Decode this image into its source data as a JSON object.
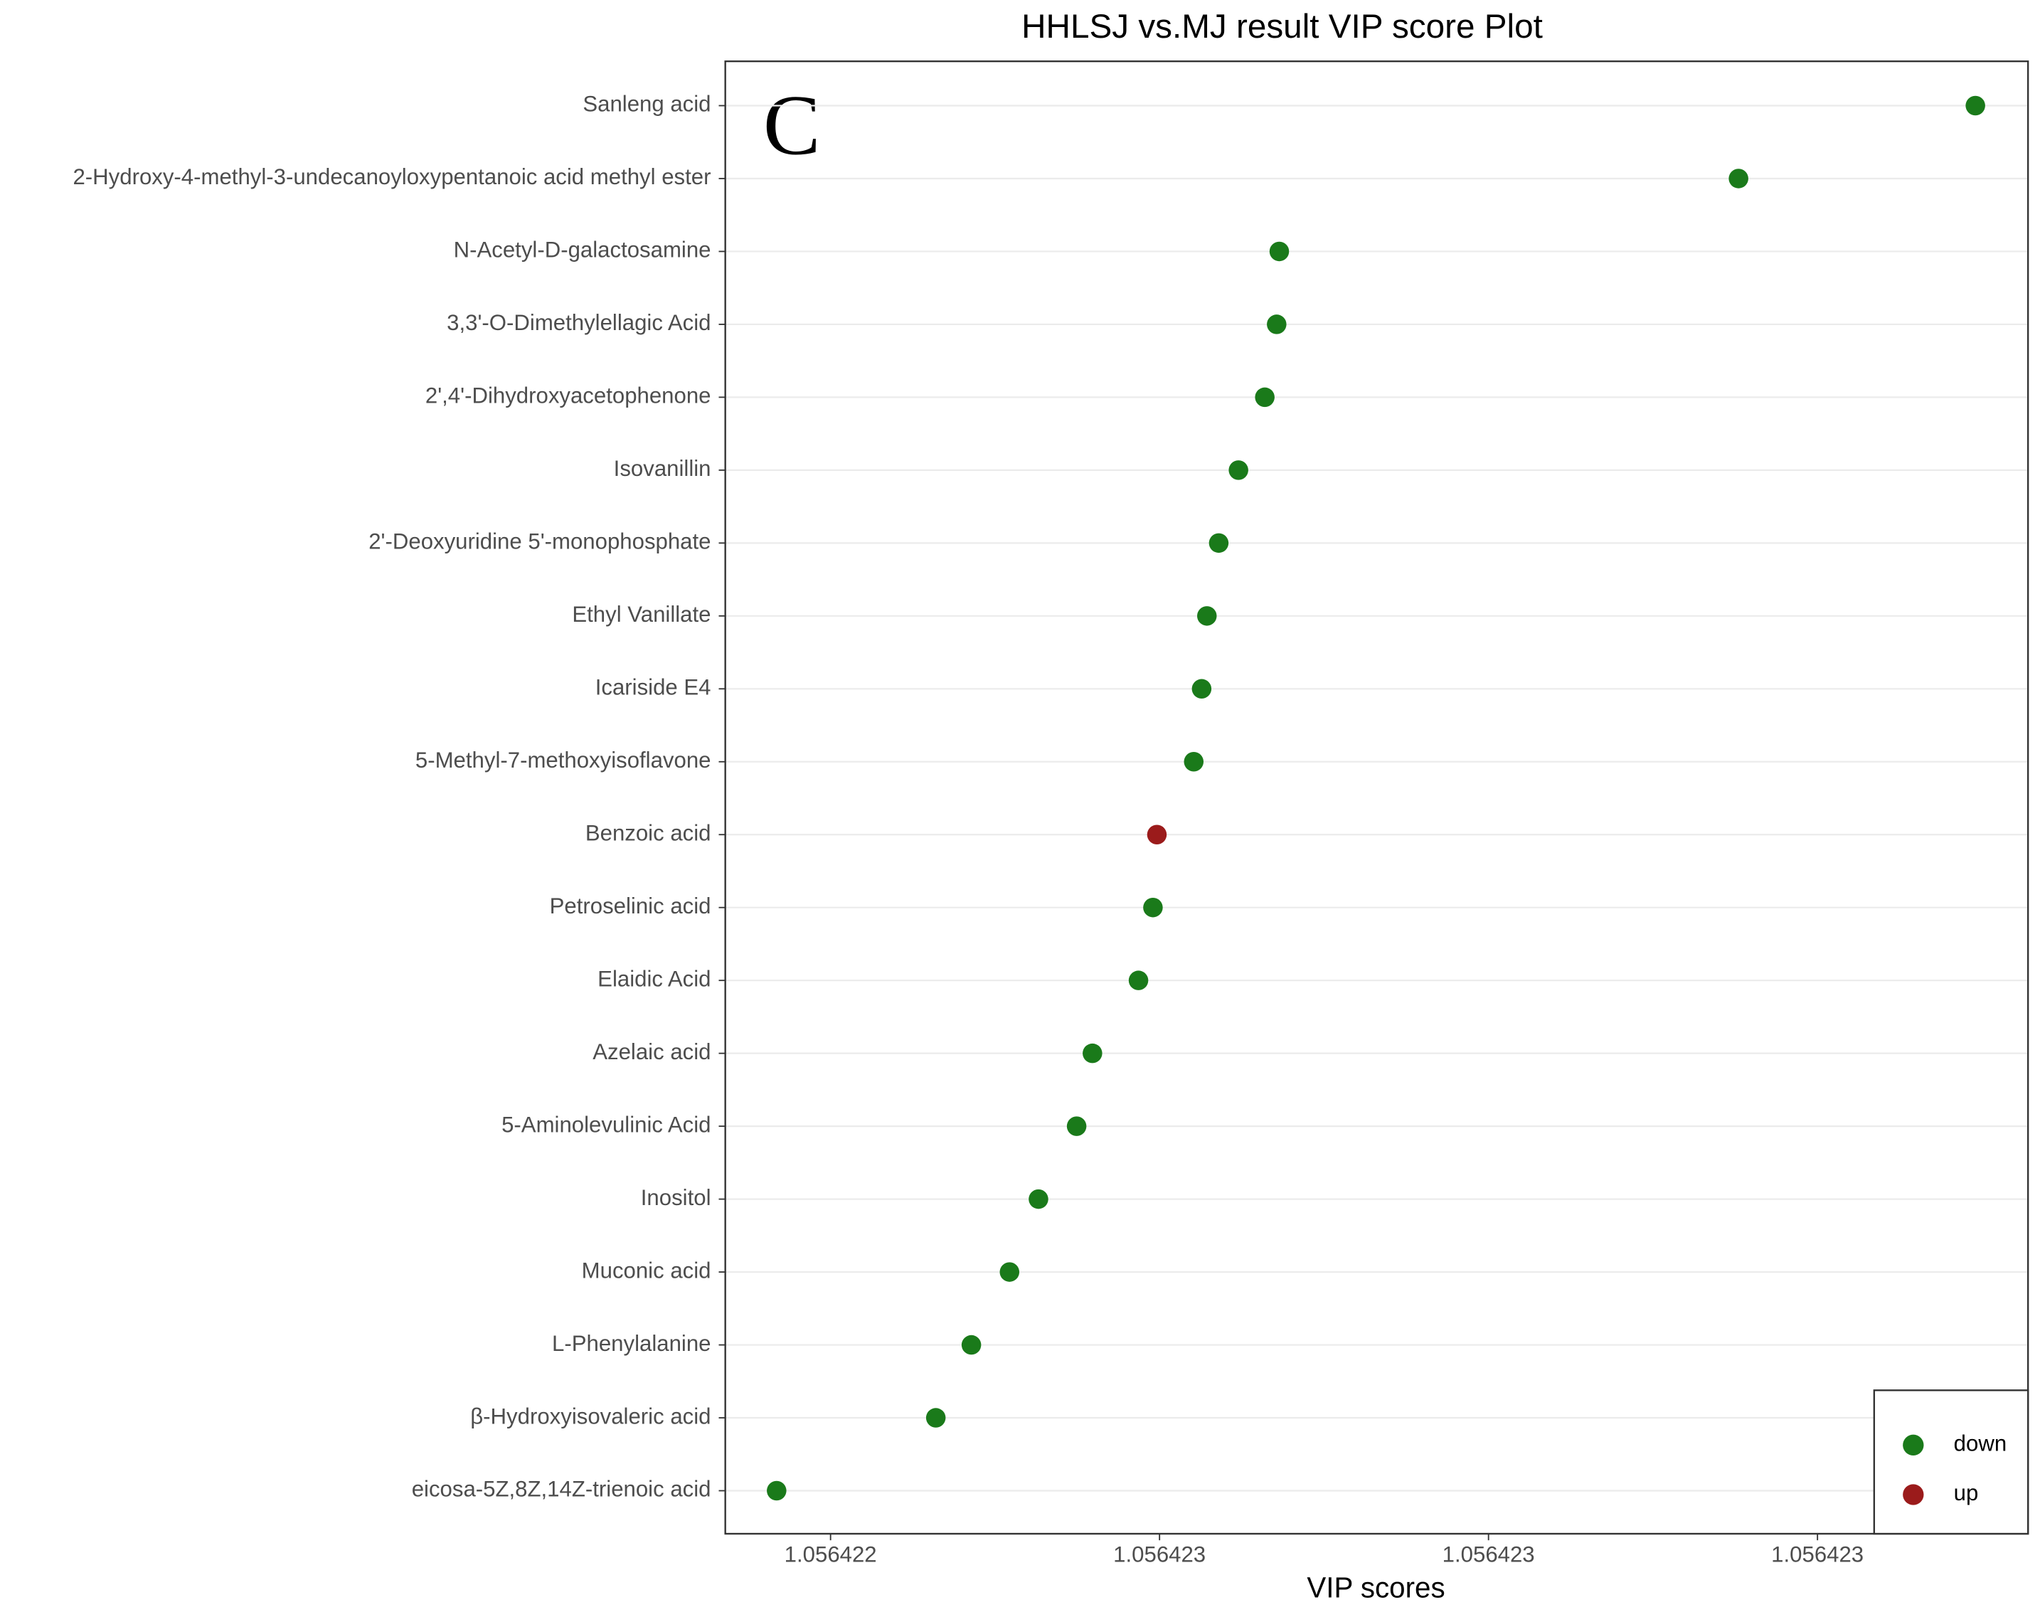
{
  "chart_data": {
    "type": "dot",
    "title": "HHLSJ vs.MJ result VIP score Plot",
    "annotation": "C",
    "x_label": "VIP scores",
    "categories": [
      "Sanleng acid",
      "2-Hydroxy-4-methyl-3-undecanoyloxypentanoic acid methyl ester",
      "N-Acetyl-D-galactosamine",
      "3,3'-O-Dimethylellagic Acid",
      "2',4'-Dihydroxyacetophenone",
      "Isovanillin",
      "2'-Deoxyuridine 5'-monophosphate",
      "Ethyl Vanillate",
      "Icariside E4",
      "5-Methyl-7-methoxyisoflavone",
      "Benzoic acid",
      "Petroselinic acid",
      "Elaidic Acid",
      "Azelaic acid",
      "5-Aminolevulinic Acid",
      "Inositol",
      "Muconic acid",
      "L-Phenylalanine",
      "β-Hydroxyisovaleric acid",
      "eicosa-5Z,8Z,14Z-trienoic acid"
    ],
    "series": [
      {
        "name": "down",
        "color": "#1a7a1a",
        "values": [
          1.05642312,
          1.05642294,
          1.056422591,
          1.056422589,
          1.05642258,
          1.05642256,
          1.056422545,
          1.056422536,
          1.056422532,
          1.056422526,
          null,
          1.056422495,
          1.056422484,
          1.056422449,
          1.056422437,
          1.056422408,
          1.056422386,
          1.056422357,
          1.05642233,
          1.056422209
        ]
      },
      {
        "name": "up",
        "color": "#9b1b1b",
        "values": [
          null,
          null,
          null,
          null,
          null,
          null,
          null,
          null,
          null,
          null,
          1.056422498,
          null,
          null,
          null,
          null,
          null,
          null,
          null,
          null,
          null
        ]
      }
    ],
    "xlim": [
      1.05642217,
      1.05642316
    ],
    "xticks": [
      {
        "value": 1.05642225,
        "label": "1.056422"
      },
      {
        "value": 1.0564225,
        "label": "1.056423"
      },
      {
        "value": 1.05642275,
        "label": "1.056423"
      },
      {
        "value": 1.056423,
        "label": "1.056423"
      }
    ],
    "grid": true,
    "legend_position": "bottom-right"
  }
}
